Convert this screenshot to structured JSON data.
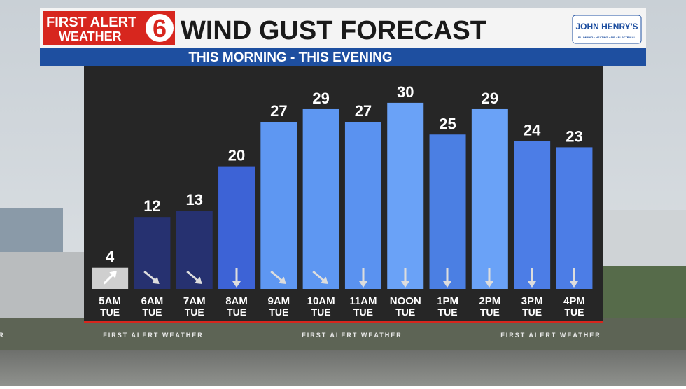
{
  "header": {
    "brand_line1": "FIRST ALERT",
    "brand_line2": "WEATHER",
    "brand_channel": "6",
    "sponsor": "JOHN HENRY'S",
    "sponsor_tagline": "PLUMBING • HEATING • AIR • ELECTRICAL"
  },
  "chart_data": {
    "type": "bar",
    "title": "WIND GUST FORECAST",
    "subtitle": "THIS MORNING  -  THIS EVENING",
    "categories": [
      "5AM",
      "6AM",
      "7AM",
      "8AM",
      "9AM",
      "10AM",
      "11AM",
      "NOON",
      "1PM",
      "2PM",
      "3PM",
      "4PM"
    ],
    "days": [
      "TUE",
      "TUE",
      "TUE",
      "TUE",
      "TUE",
      "TUE",
      "TUE",
      "TUE",
      "TUE",
      "TUE",
      "TUE",
      "TUE"
    ],
    "values": [
      4,
      12,
      13,
      20,
      27,
      29,
      27,
      30,
      25,
      29,
      24,
      23
    ],
    "colors": [
      "#cfcfcf",
      "#263170",
      "#263170",
      "#3d63d6",
      "#5e97f2",
      "#5e97f2",
      "#5a92f0",
      "#6aa2f7",
      "#4b7fe3",
      "#6aa2f7",
      "#4c7de6",
      "#4c7de6"
    ]
  },
  "ticker": [
    "FIRST ALERT WEATHER",
    "FIRST ALERT WEATHER",
    "FIRST ALERT WEATHER",
    "FIRST ALERT WEATHER"
  ]
}
